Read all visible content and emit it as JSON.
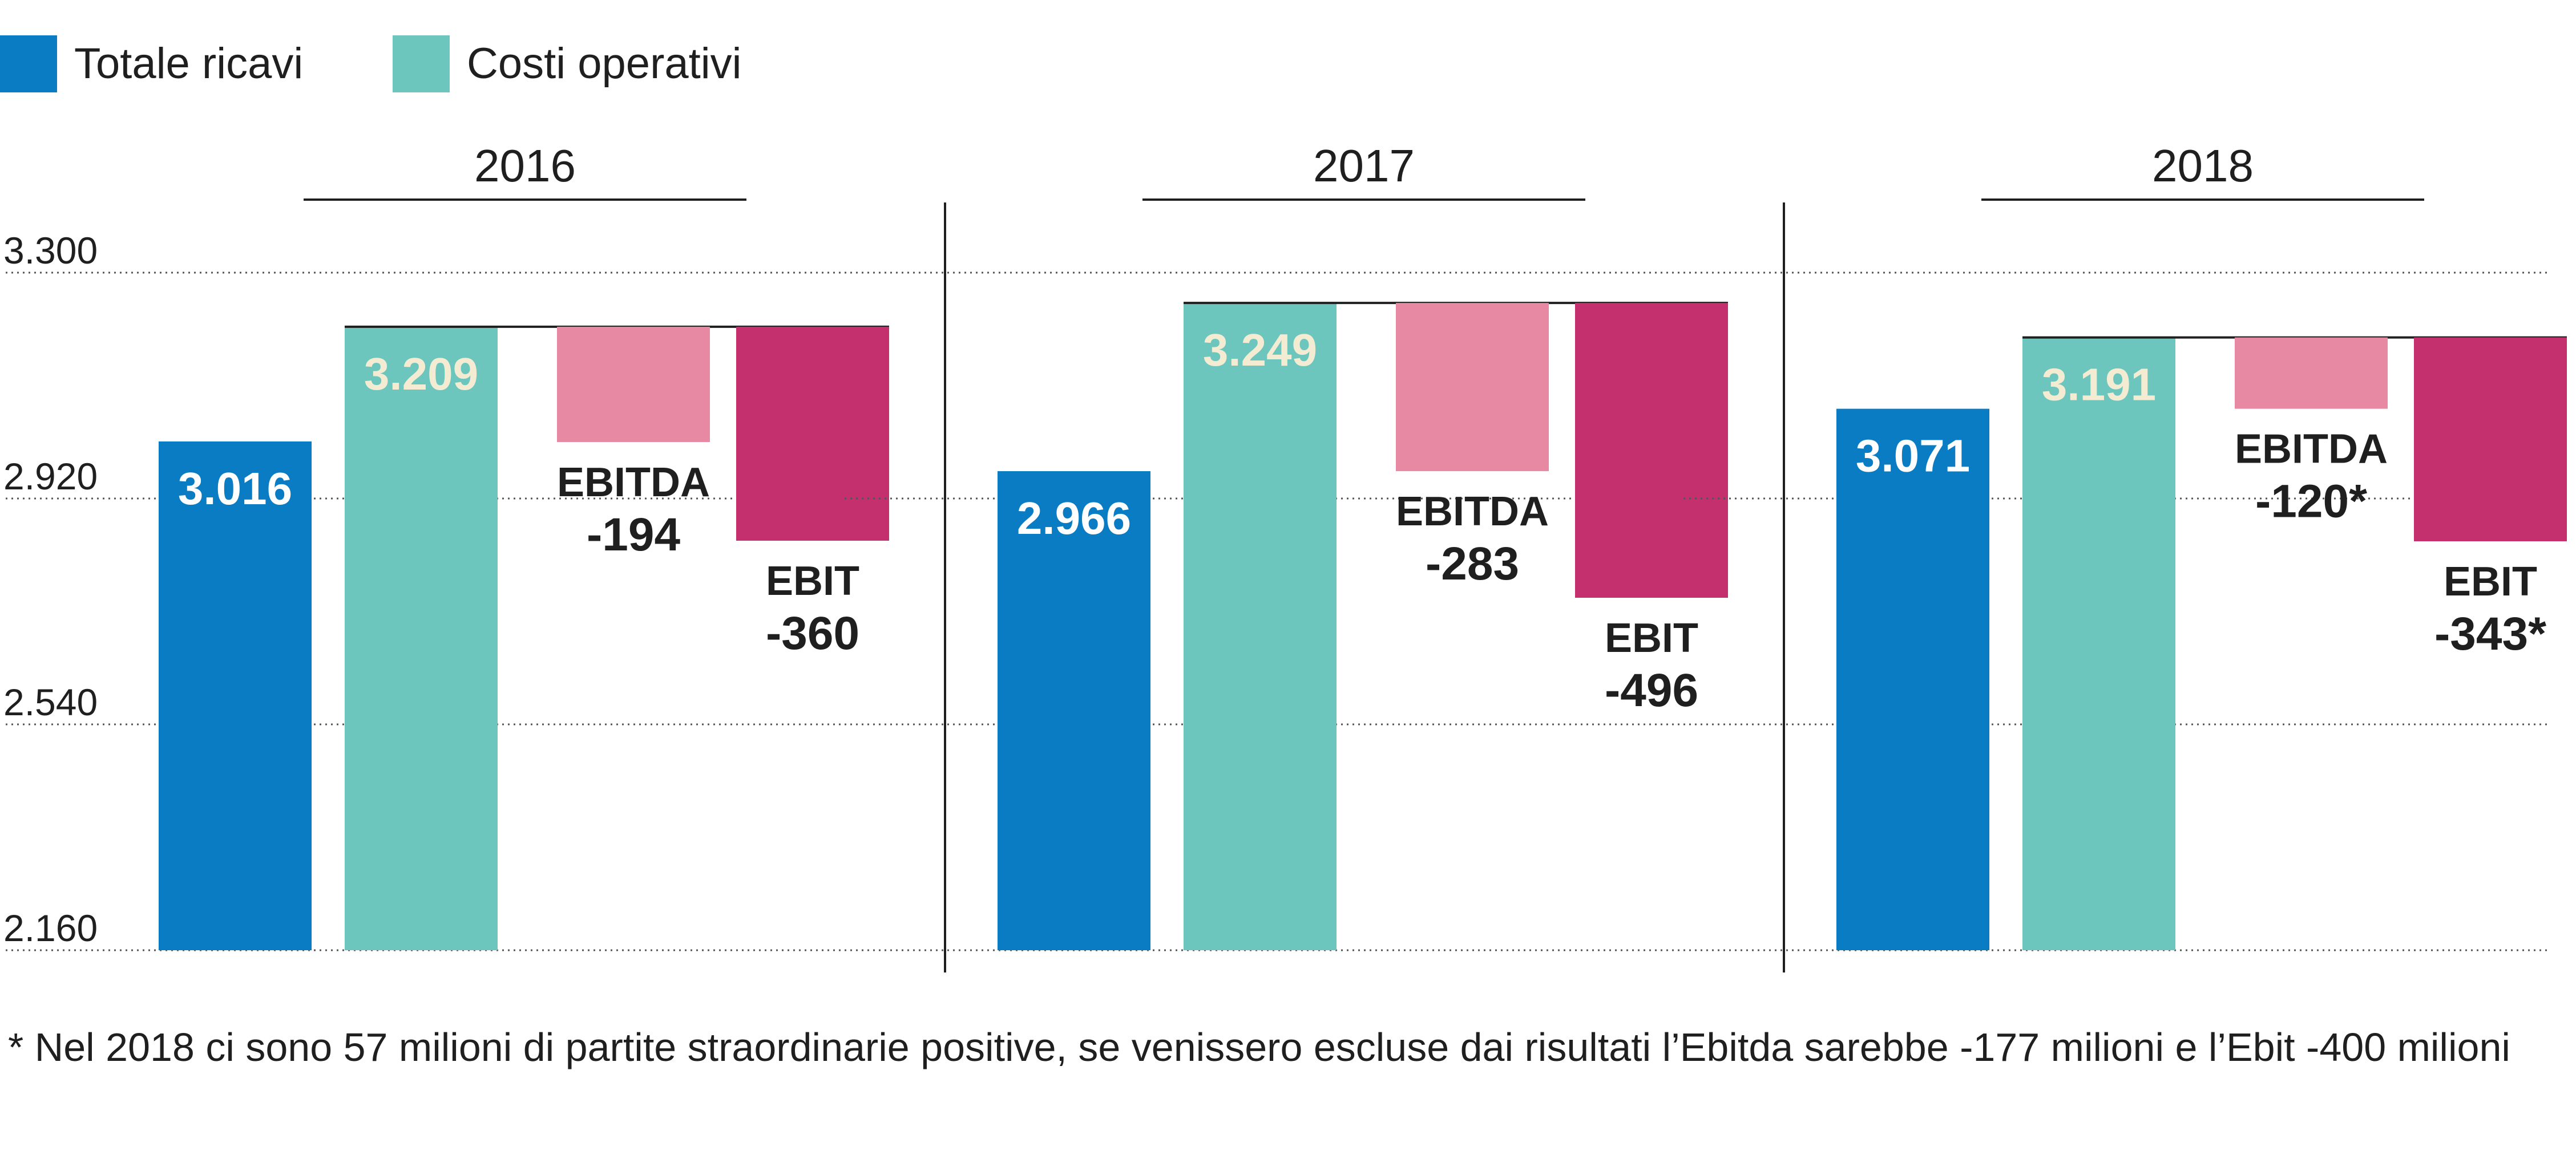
{
  "colors": {
    "revenue": "#0a7cc4",
    "costs": "#6cc6bd",
    "ebitda": "#e889a3",
    "ebit": "#c4306e",
    "text": "#1f1f1f",
    "bar_text_light": "#ffffff",
    "bar_text_cream": "#f4ecd2"
  },
  "chart_data": {
    "type": "bar",
    "title": "",
    "legend": [
      {
        "label": "Totale ricavi",
        "color": "#0a7cc4"
      },
      {
        "label": "Costi operativi",
        "color": "#6cc6bd"
      }
    ],
    "y_ticks": [
      2160,
      2540,
      2920,
      3300
    ],
    "y_tick_labels": [
      "2.160",
      "2.540",
      "2.920",
      "3.300"
    ],
    "ylim": [
      2160,
      3300
    ],
    "grid": true,
    "groups": [
      {
        "year": "2016",
        "revenue": 3016,
        "revenue_label": "3.016",
        "costs": 3209,
        "costs_label": "3.209",
        "ebitda": -194,
        "ebitda_name": "EBITDA",
        "ebitda_label": "-194",
        "ebit": -360,
        "ebit_name": "EBIT",
        "ebit_label": "-360"
      },
      {
        "year": "2017",
        "revenue": 2966,
        "revenue_label": "2.966",
        "costs": 3249,
        "costs_label": "3.249",
        "ebitda": -283,
        "ebitda_name": "EBITDA",
        "ebitda_label": "-283",
        "ebit": -496,
        "ebit_name": "EBIT",
        "ebit_label": "-496"
      },
      {
        "year": "2018",
        "revenue": 3071,
        "revenue_label": "3.071",
        "costs": 3191,
        "costs_label": "3.191",
        "ebitda": -120,
        "ebitda_name": "EBITDA",
        "ebitda_label": "-120*",
        "ebit": -343,
        "ebit_name": "EBIT",
        "ebit_label": "-343*"
      }
    ]
  },
  "footnote": "* Nel 2018 ci sono 57 milioni di partite straordinarie positive, se venissero escluse dai risultati l’Ebitda sarebbe -177 milioni e l’Ebit -400 milioni"
}
